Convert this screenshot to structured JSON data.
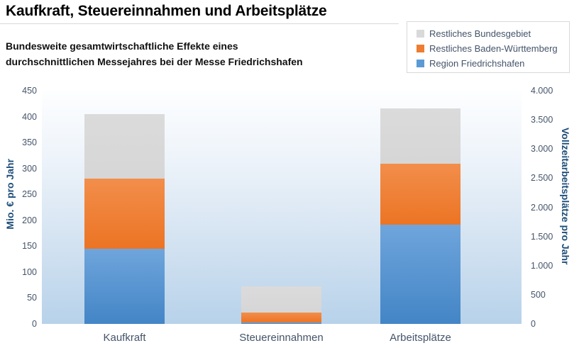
{
  "header": {
    "title": "Kaufkraft, Steuereinnahmen und Arbeitsplätze",
    "subtitle_line1": "Bundesweite gesamtwirtschaftliche Effekte eines",
    "subtitle_line2": "durchschnittlichen Messejahres bei der Messe Friedrichshafen"
  },
  "legend": {
    "items": [
      {
        "label": "Restliches Bundesgebiet",
        "color": "#d9d9d9"
      },
      {
        "label": "Restliches Baden-Württemberg",
        "color": "#ed7d31"
      },
      {
        "label": "Region Friedrichshafen",
        "color": "#5b9bd5"
      }
    ]
  },
  "chart_data": {
    "type": "bar",
    "subtype": "stacked",
    "title": "Kaufkraft, Steuereinnahmen und Arbeitsplätze",
    "categories": [
      "Kaufkraft",
      "Steuereinnahmen",
      "Arbeitsplätze"
    ],
    "left_axis": {
      "label": "Mio. € pro Jahr",
      "min": 0,
      "max": 450,
      "ticks": [
        "450",
        "400",
        "350",
        "300",
        "250",
        "200",
        "150",
        "100",
        "50",
        "0"
      ]
    },
    "right_axis": {
      "label": "Vollzeitarbeitsplätze pro Jahr",
      "min": 0,
      "max": 4000,
      "ticks": [
        "4.000",
        "3.500",
        "3.000",
        "2.500",
        "2.000",
        "1.500",
        "1.000",
        "500",
        "0"
      ]
    },
    "bar_axis": [
      "left",
      "left",
      "right"
    ],
    "values_note": "Kaufkraft and Steuereinnahmen read on left axis (Mio. € pro Jahr); Arbeitsplätze reads on right axis (Vollzeitarbeitsplätze pro Jahr). Series listed bottom-to-top of stack.",
    "series": [
      {
        "name": "Region Friedrichshafen",
        "color": "#5b9bd5",
        "gradient_top": "#6fa5dc",
        "gradient_bottom": "#4385c6",
        "values": [
          145,
          3,
          1700
        ]
      },
      {
        "name": "Restliches Baden-Württemberg",
        "color": "#ed7d31",
        "gradient_top": "#f28e4b",
        "gradient_bottom": "#ec7424",
        "values": [
          135,
          19,
          1050
        ]
      },
      {
        "name": "Restliches Bundesgebiet",
        "color": "#d9d9d9",
        "gradient_top": "#dbdbdb",
        "gradient_bottom": "#d6d6d6",
        "values": [
          125,
          51,
          950
        ]
      }
    ],
    "stacked_totals": [
      405,
      73,
      3700
    ],
    "grid": false,
    "legend_position": "top-right",
    "plot_background": {
      "top": "#fdfeff",
      "bottom": "#b7d2ea"
    }
  }
}
